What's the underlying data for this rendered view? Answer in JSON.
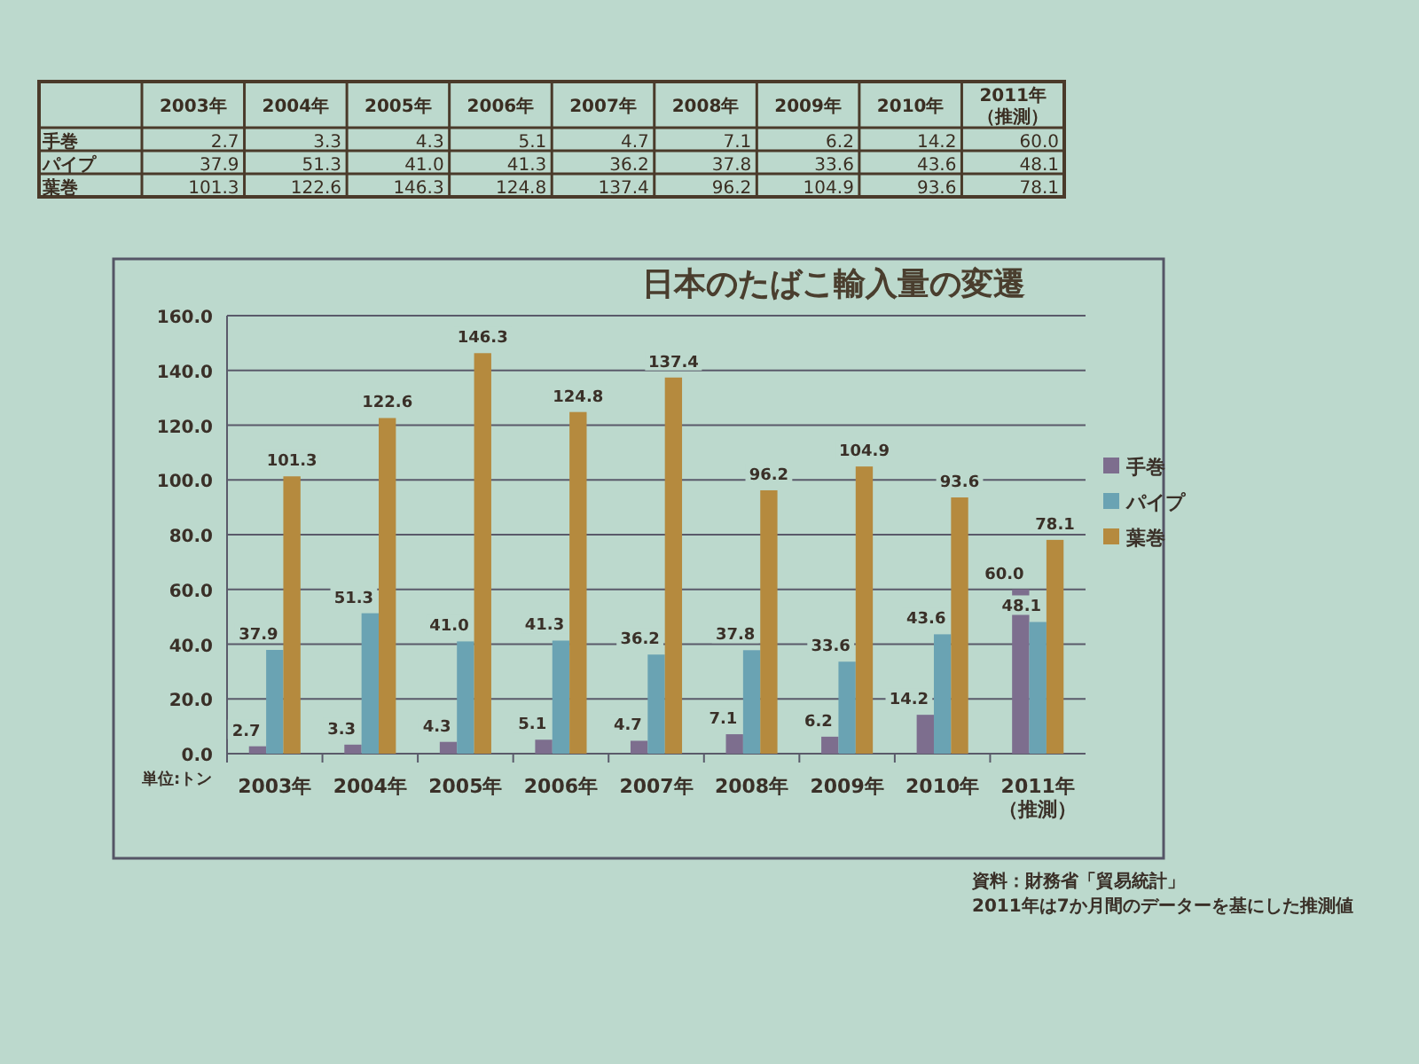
{
  "chart_data": {
    "type": "bar",
    "title": "日本のたばこ輸入量の変遷",
    "categories": [
      "2003年",
      "2004年",
      "2005年",
      "2006年",
      "2007年",
      "2008年",
      "2009年",
      "2010年",
      "2011年（推測）"
    ],
    "series": [
      {
        "name": "手巻",
        "color": "#7d6e8e",
        "values": [
          2.7,
          3.3,
          4.3,
          5.1,
          4.7,
          7.1,
          6.2,
          14.2,
          60.0
        ],
        "value_labels": [
          "2.7",
          "3.3",
          "4.3",
          "5.1",
          "4.7",
          "7.1",
          "6.2",
          "14.2",
          "60.0"
        ]
      },
      {
        "name": "パイプ",
        "color": "#6aa3b3",
        "values": [
          37.9,
          51.3,
          41.0,
          41.3,
          36.2,
          37.8,
          33.6,
          43.6,
          48.1
        ],
        "value_labels": [
          "37.9",
          "51.3",
          "41.0",
          "41.3",
          "36.2",
          "37.8",
          "33.6",
          "43.6",
          "48.1"
        ]
      },
      {
        "name": "葉巻",
        "color": "#b58a3e",
        "values": [
          101.3,
          122.6,
          146.3,
          124.8,
          137.4,
          96.2,
          104.9,
          93.6,
          78.1
        ],
        "value_labels": [
          "101.3",
          "122.6",
          "146.3",
          "124.8",
          "137.4",
          "96.2",
          "104.9",
          "93.6",
          "78.1"
        ]
      }
    ],
    "ylim": [
      0,
      160
    ],
    "yticks": [
      {
        "value": 0,
        "label": "0.0"
      },
      {
        "value": 20,
        "label": "20.0"
      },
      {
        "value": 40,
        "label": "40.0"
      },
      {
        "value": 60,
        "label": "60.0"
      },
      {
        "value": 80,
        "label": "80.0"
      },
      {
        "value": 100,
        "label": "100.0"
      },
      {
        "value": 120,
        "label": "120.0"
      },
      {
        "value": 140,
        "label": "140.0"
      },
      {
        "value": 160,
        "label": "160.0"
      }
    ],
    "grid": "y",
    "legend": "right",
    "annotations": [
      "単位:トン",
      "資料：財務省「貿易統計」",
      "2011年は7か月間のデーターを基にした推測値"
    ]
  }
}
